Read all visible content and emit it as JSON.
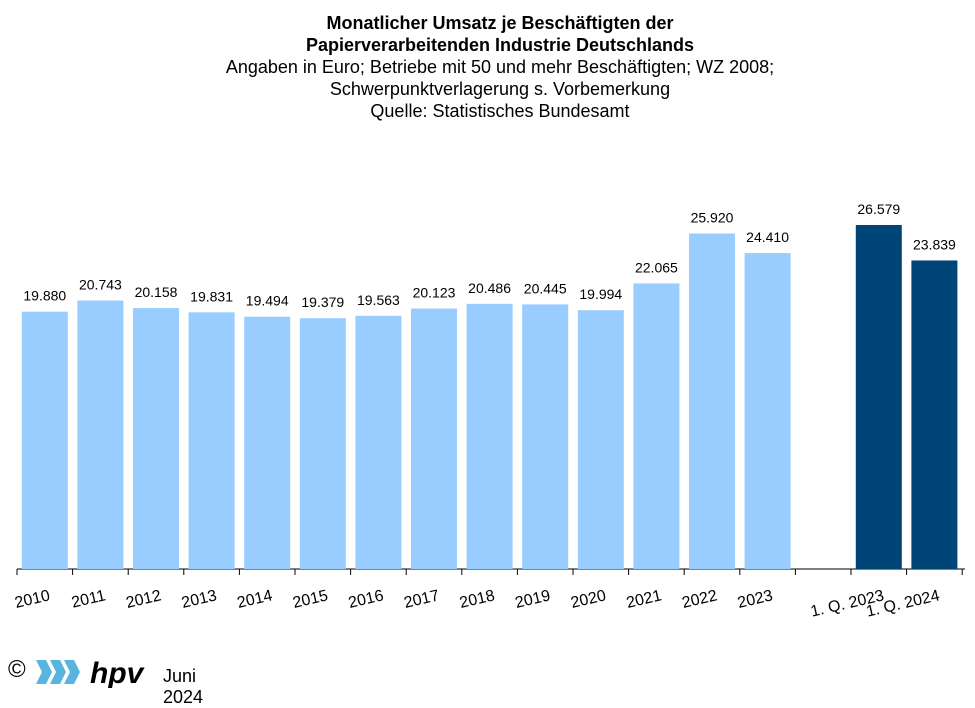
{
  "header": {
    "title_line1": "Monatlicher Umsatz je Beschäftigten der",
    "title_line2": "Papierverarbeitenden Industrie Deutschlands",
    "subtitle_line1": "Angaben  in Euro; Betriebe mit 50 und mehr Beschäftigten; WZ 2008;",
    "subtitle_line2": "Schwerpunktverlagerung s. Vorbemerkung",
    "subtitle_line3": "Quelle:  Statistisches Bundesamt"
  },
  "chart_data": {
    "type": "bar",
    "title": "Monatlicher Umsatz je Beschäftigten der Papierverarbeitenden Industrie Deutschlands",
    "subtitle": "Angaben  in Euro; Betriebe mit 50 und mehr Beschäftigten; WZ 2008; Schwerpunktverlagerung s. Vorbemerkung",
    "source": "Quelle:  Statistisches Bundesamt",
    "xlabel": "",
    "ylabel": "",
    "ylim": [
      0,
      26579
    ],
    "grid": false,
    "legend": "none",
    "categories": [
      "2010",
      "2011",
      "2012",
      "2013",
      "2014",
      "2015",
      "2016",
      "2017",
      "2018",
      "2019",
      "2020",
      "2021",
      "2022",
      "2023",
      "",
      "1. Q. 2023",
      "1. Q. 2024"
    ],
    "values": [
      19880,
      20743,
      20158,
      19831,
      19494,
      19379,
      19563,
      20123,
      20486,
      20445,
      19994,
      22065,
      25920,
      24410,
      null,
      26579,
      23839
    ],
    "labels": [
      "19.880",
      "20.743",
      "20.158",
      "19.831",
      "19.494",
      "19.379",
      "19.563",
      "20.123",
      "20.486",
      "20.445",
      "19.994",
      "22.065",
      "25.920",
      "24.410",
      "",
      "26.579",
      "23.839"
    ],
    "colors": {
      "annual": "#99ccff",
      "quarterly": "#004578",
      "axis": "#000000"
    }
  },
  "footer": {
    "copyright": "©",
    "logo_text": "hpv",
    "date": "Juni 2024"
  }
}
